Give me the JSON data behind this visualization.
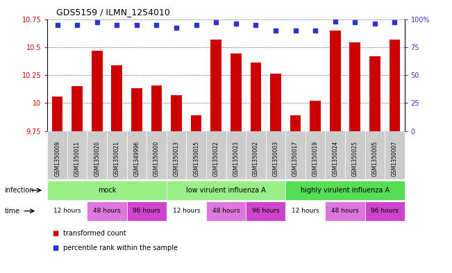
{
  "title": "GDS5159 / ILMN_1254010",
  "samples": [
    "GSM1350009",
    "GSM1350011",
    "GSM1350020",
    "GSM1350021",
    "GSM1349996",
    "GSM1350000",
    "GSM1350013",
    "GSM1350015",
    "GSM1350022",
    "GSM1350023",
    "GSM1350002",
    "GSM1350003",
    "GSM1350017",
    "GSM1350019",
    "GSM1350024",
    "GSM1350025",
    "GSM1350005",
    "GSM1350007"
  ],
  "bar_values": [
    10.06,
    10.15,
    10.47,
    10.34,
    10.13,
    10.16,
    10.07,
    9.89,
    10.57,
    10.44,
    10.36,
    10.26,
    9.89,
    10.02,
    10.65,
    10.54,
    10.42,
    10.57
  ],
  "dot_values": [
    95,
    95,
    97,
    95,
    95,
    95,
    92,
    95,
    97,
    96,
    95,
    90,
    90,
    90,
    98,
    97,
    96,
    97
  ],
  "ylim_left": [
    9.75,
    10.75
  ],
  "ylim_right": [
    0,
    100
  ],
  "yticks_left": [
    9.75,
    10.0,
    10.25,
    10.5,
    10.75
  ],
  "ytick_labels_left": [
    "9.75",
    "10",
    "10.25",
    "10.5",
    "10.75"
  ],
  "yticks_right": [
    0,
    25,
    50,
    75,
    100
  ],
  "ytick_labels_right": [
    "0",
    "25",
    "50",
    "75",
    "100%"
  ],
  "bar_color": "#cc0000",
  "dot_color": "#3333cc",
  "infection_groups": [
    {
      "label": "mock",
      "color": "#99ee88",
      "start": 0,
      "end": 6
    },
    {
      "label": "low virulent influenza A",
      "color": "#99ee88",
      "start": 6,
      "end": 12
    },
    {
      "label": "highly virulent influenza A",
      "color": "#55dd55",
      "start": 12,
      "end": 18
    }
  ],
  "time_groups": [
    {
      "label": "12 hours",
      "color": "#ffffff",
      "start": 0,
      "end": 2
    },
    {
      "label": "48 hours",
      "color": "#dd77dd",
      "start": 2,
      "end": 4
    },
    {
      "label": "96 hours",
      "color": "#cc44cc",
      "start": 4,
      "end": 6
    },
    {
      "label": "12 hours",
      "color": "#ffffff",
      "start": 6,
      "end": 8
    },
    {
      "label": "48 hours",
      "color": "#dd77dd",
      "start": 8,
      "end": 10
    },
    {
      "label": "96 hours",
      "color": "#cc44cc",
      "start": 10,
      "end": 12
    },
    {
      "label": "12 hours",
      "color": "#ffffff",
      "start": 12,
      "end": 14
    },
    {
      "label": "48 hours",
      "color": "#dd77dd",
      "start": 14,
      "end": 16
    },
    {
      "label": "96 hours",
      "color": "#cc44cc",
      "start": 16,
      "end": 18
    }
  ],
  "infection_label": "infection",
  "time_label": "time",
  "legend_bar": "transformed count",
  "legend_dot": "percentile rank within the sample",
  "background_color": "#ffffff",
  "xlabels_bg": "#cccccc"
}
